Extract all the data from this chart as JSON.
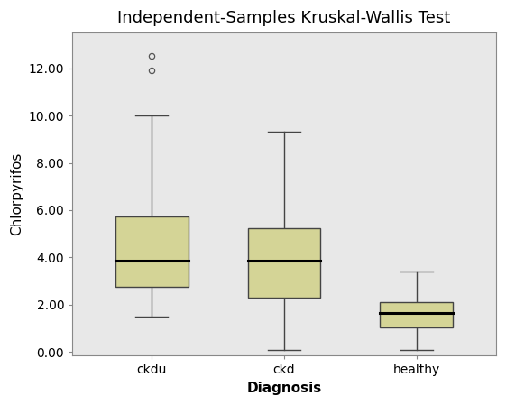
{
  "title": "Independent-Samples Kruskal-Wallis Test",
  "xlabel": "Diagnosis",
  "ylabel": "Chlorpyrifos",
  "categories": [
    "ckdu",
    "ckd",
    "healthy"
  ],
  "box_data": {
    "ckdu": {
      "q1": 2.75,
      "median": 3.85,
      "q3": 5.75,
      "whisker_low": 1.5,
      "whisker_high": 10.0,
      "outliers": [
        11.9,
        12.5
      ]
    },
    "ckd": {
      "q1": 2.3,
      "median": 3.85,
      "q3": 5.25,
      "whisker_low": 0.1,
      "whisker_high": 9.3,
      "outliers": []
    },
    "healthy": {
      "q1": 1.05,
      "median": 1.65,
      "q3": 2.1,
      "whisker_low": 0.1,
      "whisker_high": 3.4,
      "outliers": []
    }
  },
  "ylim": [
    -0.15,
    13.5
  ],
  "yticks": [
    0.0,
    2.0,
    4.0,
    6.0,
    8.0,
    10.0,
    12.0
  ],
  "ytick_labels": [
    "0.00",
    "2.00",
    "4.00",
    "6.00",
    "8.00",
    "10.00",
    "12.00"
  ],
  "box_color": "#d4d496",
  "box_edge_color": "#444444",
  "median_color": "#000000",
  "whisker_color": "#444444",
  "cap_color": "#444444",
  "outlier_color": "#555555",
  "plot_bg_color": "#e8e8e8",
  "figure_bg": "#ffffff",
  "title_fontsize": 13,
  "label_fontsize": 11,
  "tick_fontsize": 10,
  "box_width": 0.55,
  "positions": [
    1,
    2,
    3
  ]
}
